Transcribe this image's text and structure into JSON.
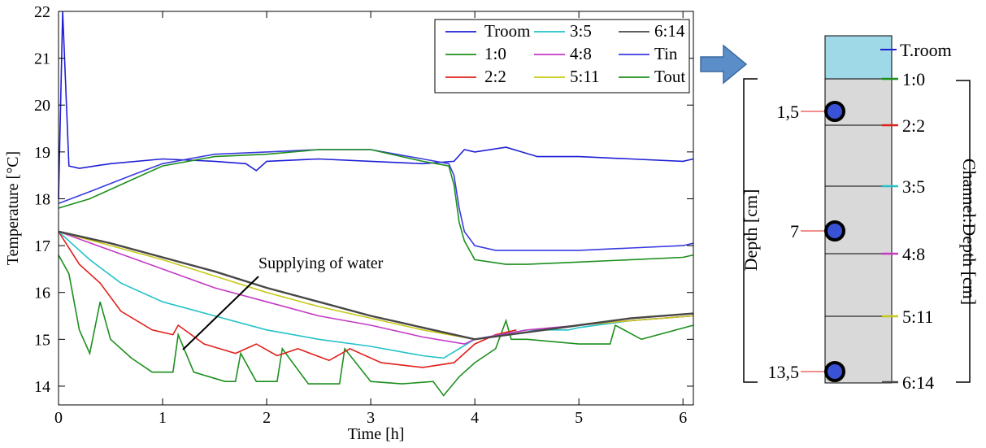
{
  "chart_data": {
    "type": "line",
    "xlabel": "Time [h]",
    "ylabel": "Temperature [°C]",
    "xlim": [
      0,
      6.1
    ],
    "ylim": [
      13.6,
      22
    ],
    "xticks": [
      0,
      1,
      2,
      3,
      4,
      5,
      6
    ],
    "yticks": [
      14,
      15,
      16,
      17,
      18,
      19,
      20,
      21,
      22
    ],
    "grid": false,
    "legend_position": "top-right",
    "annotation": "Supplying of water",
    "series": [
      {
        "name": "Troom",
        "color": "#1f1fd6",
        "x": [
          0,
          0.04,
          0.1,
          0.2,
          0.5,
          1.0,
          1.5,
          1.8,
          1.9,
          2.0,
          2.5,
          3.0,
          3.5,
          3.8,
          3.9,
          4.0,
          4.3,
          4.6,
          5.0,
          5.5,
          6.0,
          6.1
        ],
        "y": [
          18.0,
          22.0,
          18.7,
          18.65,
          18.75,
          18.85,
          18.8,
          18.75,
          18.6,
          18.8,
          18.85,
          18.8,
          18.75,
          18.8,
          19.05,
          19.0,
          19.1,
          18.9,
          18.9,
          18.85,
          18.8,
          18.85
        ]
      },
      {
        "name": "1:0",
        "color": "#1d8f1d",
        "x": [
          0,
          0.1,
          0.2,
          0.3,
          0.4,
          0.5,
          0.7,
          0.9,
          1.1,
          1.15,
          1.3,
          1.6,
          1.7,
          1.75,
          1.9,
          2.1,
          2.15,
          2.4,
          2.7,
          2.75,
          3.0,
          3.3,
          3.6,
          3.7,
          3.85,
          4.0,
          4.2,
          4.3,
          4.35,
          4.5,
          5.0,
          5.3,
          5.35,
          5.6,
          6.1
        ],
        "y": [
          16.8,
          16.4,
          15.2,
          14.7,
          15.8,
          15.0,
          14.6,
          14.3,
          14.3,
          15.1,
          14.3,
          14.1,
          14.1,
          14.7,
          14.1,
          14.1,
          14.8,
          14.05,
          14.05,
          14.8,
          14.1,
          14.05,
          14.1,
          13.8,
          14.2,
          14.5,
          14.8,
          15.4,
          15.0,
          15.0,
          14.9,
          14.9,
          15.3,
          15.0,
          15.3
        ]
      },
      {
        "name": "2:2",
        "color": "#e0201a",
        "x": [
          0,
          0.2,
          0.4,
          0.6,
          0.9,
          1.1,
          1.15,
          1.4,
          1.7,
          1.9,
          2.1,
          2.3,
          2.6,
          2.8,
          3.1,
          3.5,
          3.8,
          4.0,
          4.2,
          4.4
        ],
        "y": [
          17.3,
          16.6,
          16.2,
          15.6,
          15.2,
          15.1,
          15.3,
          14.9,
          14.7,
          14.9,
          14.65,
          14.8,
          14.55,
          14.8,
          14.5,
          14.4,
          14.5,
          14.9,
          15.1,
          15.2
        ]
      },
      {
        "name": "3:5",
        "color": "#22c2c8",
        "x": [
          0,
          0.3,
          0.6,
          1.0,
          1.5,
          2.0,
          2.5,
          3.0,
          3.5,
          3.7,
          4.0,
          4.5,
          4.9,
          5.0,
          5.5,
          6.1
        ],
        "y": [
          17.3,
          16.7,
          16.2,
          15.8,
          15.5,
          15.2,
          15.0,
          14.85,
          14.65,
          14.6,
          15.0,
          15.2,
          15.2,
          15.25,
          15.4,
          15.5
        ]
      },
      {
        "name": "4:8",
        "color": "#c43ac4",
        "x": [
          0,
          0.5,
          1.0,
          1.5,
          2.0,
          2.5,
          3.0,
          3.5,
          3.9,
          4.0,
          4.5,
          5.0,
          5.5,
          6.1
        ],
        "y": [
          17.3,
          16.9,
          16.5,
          16.1,
          15.8,
          15.5,
          15.3,
          15.05,
          14.9,
          15.0,
          15.2,
          15.3,
          15.4,
          15.5
        ]
      },
      {
        "name": "5:11",
        "color": "#c8c81a",
        "x": [
          0,
          0.5,
          1.0,
          1.5,
          2.0,
          2.5,
          3.0,
          3.5,
          4.0,
          4.5,
          5.0,
          5.5,
          6.1
        ],
        "y": [
          17.3,
          17.0,
          16.7,
          16.35,
          16.0,
          15.7,
          15.45,
          15.2,
          15.0,
          15.15,
          15.3,
          15.4,
          15.5
        ]
      },
      {
        "name": "6:14",
        "color": "#474747",
        "x": [
          0,
          0.5,
          1.0,
          1.5,
          2.0,
          2.5,
          3.0,
          3.5,
          4.0,
          4.5,
          5.0,
          5.5,
          6.1
        ],
        "y": [
          17.3,
          17.05,
          16.75,
          16.45,
          16.1,
          15.8,
          15.5,
          15.25,
          15.0,
          15.15,
          15.3,
          15.45,
          15.55
        ]
      },
      {
        "name": "Tin",
        "color": "#3a3ae0",
        "x": [
          0,
          0.3,
          0.7,
          1.0,
          1.5,
          2.0,
          2.5,
          3.0,
          3.5,
          3.75,
          3.8,
          3.85,
          3.9,
          4.0,
          4.2,
          4.5,
          5.0,
          5.5,
          6.0,
          6.1
        ],
        "y": [
          17.9,
          18.15,
          18.5,
          18.75,
          18.95,
          19.0,
          19.05,
          19.05,
          18.85,
          18.75,
          18.5,
          17.8,
          17.3,
          17.0,
          16.9,
          16.9,
          16.9,
          16.95,
          17.0,
          17.05
        ]
      },
      {
        "name": "Tout",
        "color": "#1d8f1d",
        "x": [
          0,
          0.3,
          0.7,
          1.0,
          1.5,
          2.0,
          2.5,
          3.0,
          3.5,
          3.75,
          3.8,
          3.85,
          3.9,
          4.0,
          4.3,
          4.5,
          5.0,
          5.5,
          6.0,
          6.1
        ],
        "y": [
          17.8,
          18.0,
          18.4,
          18.7,
          18.9,
          18.95,
          19.05,
          19.05,
          18.8,
          18.7,
          18.3,
          17.5,
          17.1,
          16.7,
          16.6,
          16.6,
          16.65,
          16.7,
          16.75,
          16.8
        ]
      }
    ]
  },
  "diagram": {
    "top_label": "T.room",
    "depth_axis_label": "Depth [cm]",
    "channel_axis_label": "Channel:Depth [cm]",
    "sensor_depths": [
      "1,5",
      "7",
      "13,5"
    ],
    "channels": [
      {
        "label": "1:0",
        "color": "#1d8f1d"
      },
      {
        "label": "2:2",
        "color": "#e0201a"
      },
      {
        "label": "3:5",
        "color": "#22c2c8"
      },
      {
        "label": "4:8",
        "color": "#c43ac4"
      },
      {
        "label": "5:11",
        "color": "#c8c81a"
      },
      {
        "label": "6:14",
        "color": "#474747"
      }
    ],
    "room_color": "#9fd8e6",
    "soil_color": "#d9d9d9",
    "arrow_color": "#5b8ec9"
  }
}
